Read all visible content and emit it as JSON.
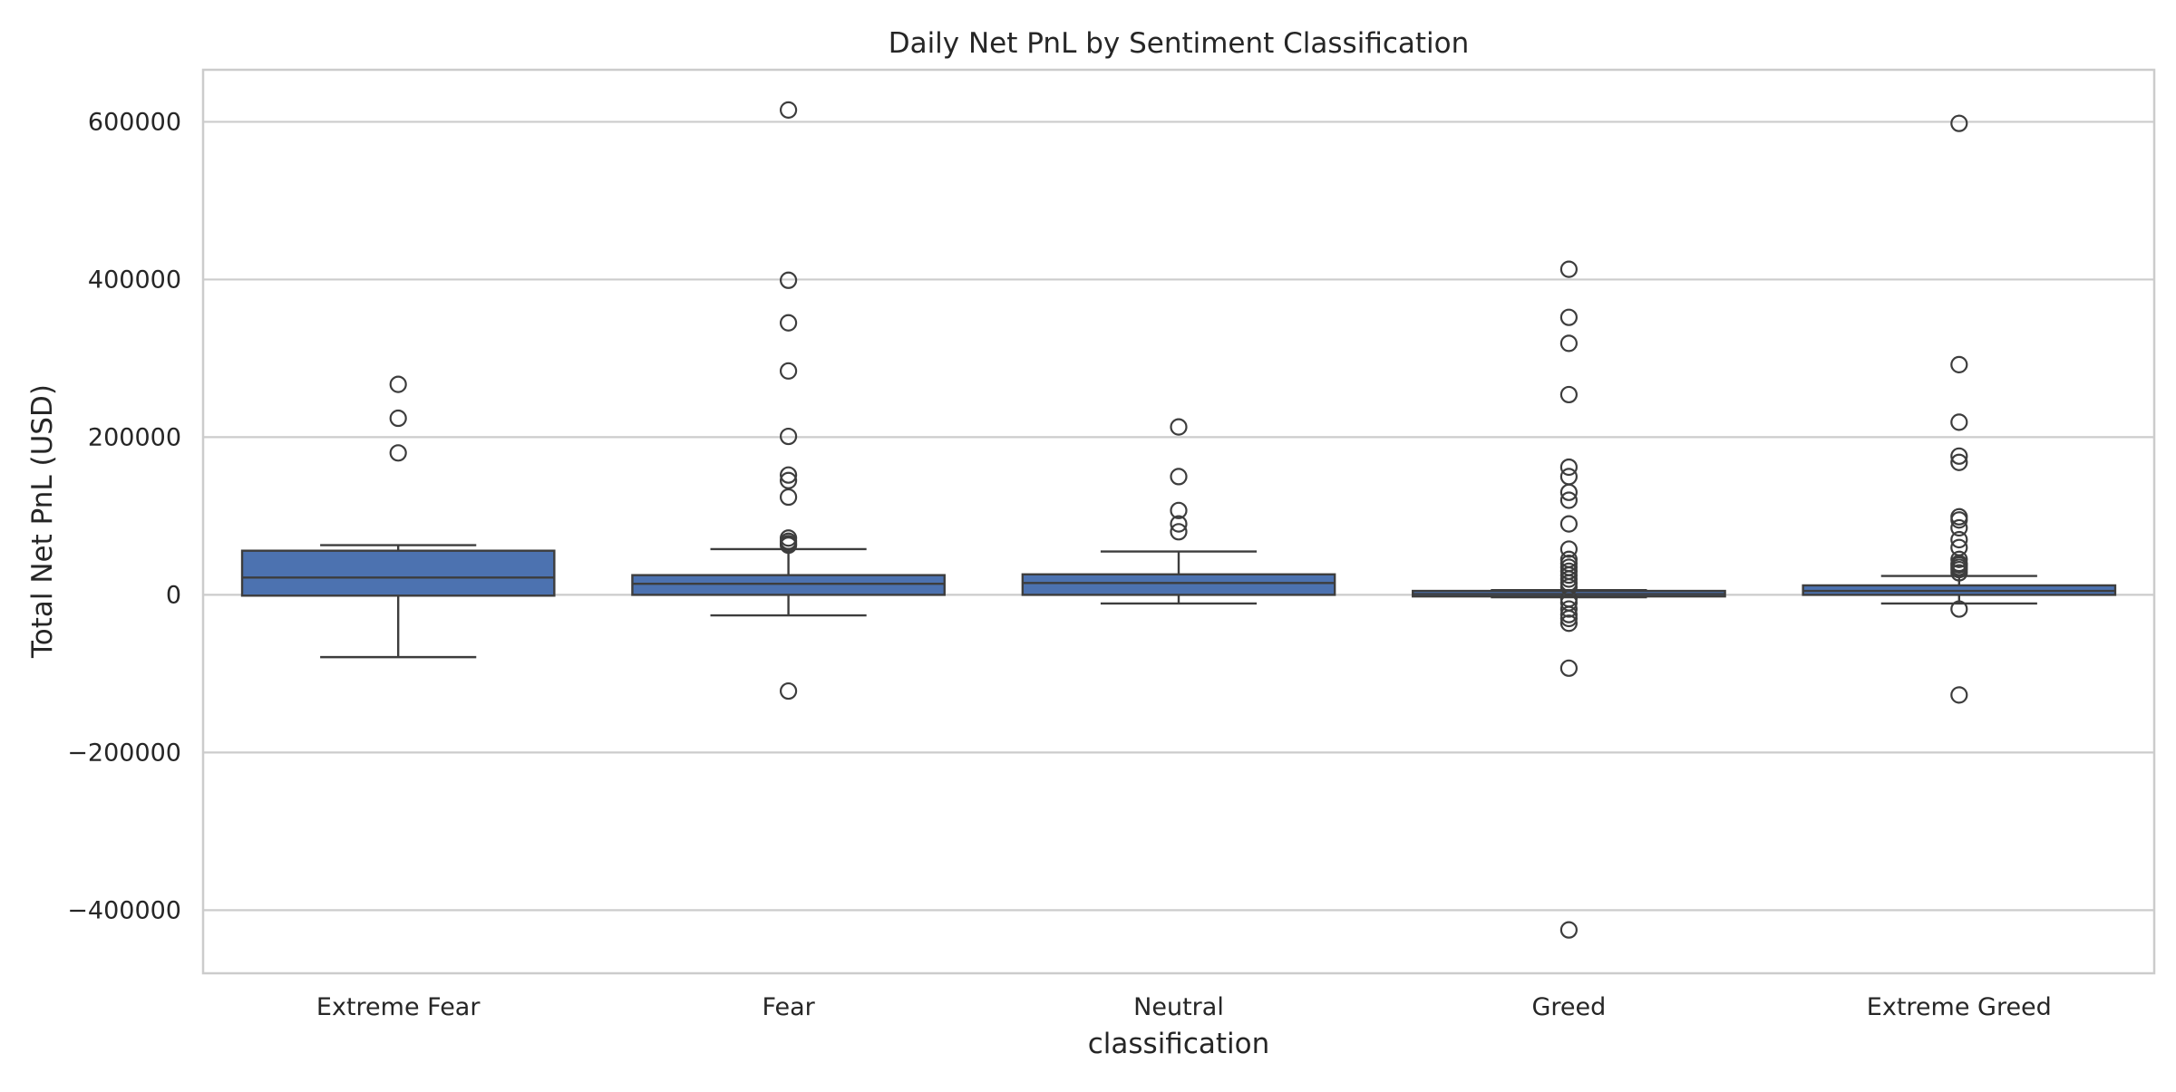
{
  "chart_data": {
    "type": "box",
    "title": "Daily Net PnL by Sentiment Classification",
    "xlabel": "classification",
    "ylabel": "Total Net PnL (USD)",
    "ylim": [
      -480000,
      666000
    ],
    "y_ticks": [
      -400000,
      -200000,
      0,
      200000,
      400000,
      600000
    ],
    "y_tick_labels": [
      "−400000",
      "−200000",
      "0",
      "200000",
      "400000",
      "600000"
    ],
    "grid": true,
    "legend": "none",
    "colors": {
      "box_fill": "#4c72b0",
      "line": "#3d3d3d",
      "grid": "#cccccc",
      "frame": "#cccccc"
    },
    "categories": [
      "Extreme Fear",
      "Fear",
      "Neutral",
      "Greed",
      "Extreme Greed"
    ],
    "boxes": [
      {
        "category": "Extreme Fear",
        "whisker_low": -79000,
        "q1": -1000,
        "median": 22000,
        "q3": 56000,
        "whisker_high": 63000,
        "outliers": [
          267000,
          224000,
          180000
        ]
      },
      {
        "category": "Fear",
        "whisker_low": -26000,
        "q1": 0,
        "median": 14000,
        "q3": 25000,
        "whisker_high": 58000,
        "outliers": [
          615000,
          399000,
          345000,
          284000,
          201000,
          152000,
          145000,
          124000,
          72000,
          68000,
          65000,
          63000,
          -122000
        ]
      },
      {
        "category": "Neutral",
        "whisker_low": -11000,
        "q1": 0,
        "median": 15000,
        "q3": 26000,
        "whisker_high": 55000,
        "outliers": [
          213000,
          150000,
          107000,
          90000,
          80000
        ]
      },
      {
        "category": "Greed",
        "whisker_low": -3000,
        "q1": -2000,
        "median": 1000,
        "q3": 5000,
        "whisker_high": 6000,
        "outliers": [
          413000,
          352000,
          319000,
          254000,
          162000,
          150000,
          130000,
          120000,
          90000,
          58000,
          45000,
          40000,
          35000,
          30000,
          25000,
          20000,
          15000,
          10000,
          -5000,
          -10000,
          -18000,
          -25000,
          -30000,
          -36000,
          -93000,
          -425000
        ]
      },
      {
        "category": "Extreme Greed",
        "whisker_low": -11000,
        "q1": 0,
        "median": 5000,
        "q3": 12000,
        "whisker_high": 24000,
        "outliers": [
          598000,
          292000,
          219000,
          176000,
          168000,
          99000,
          95000,
          85000,
          70000,
          60000,
          45000,
          40000,
          38000,
          35000,
          32000,
          28000,
          -18000,
          -127000
        ]
      }
    ]
  }
}
